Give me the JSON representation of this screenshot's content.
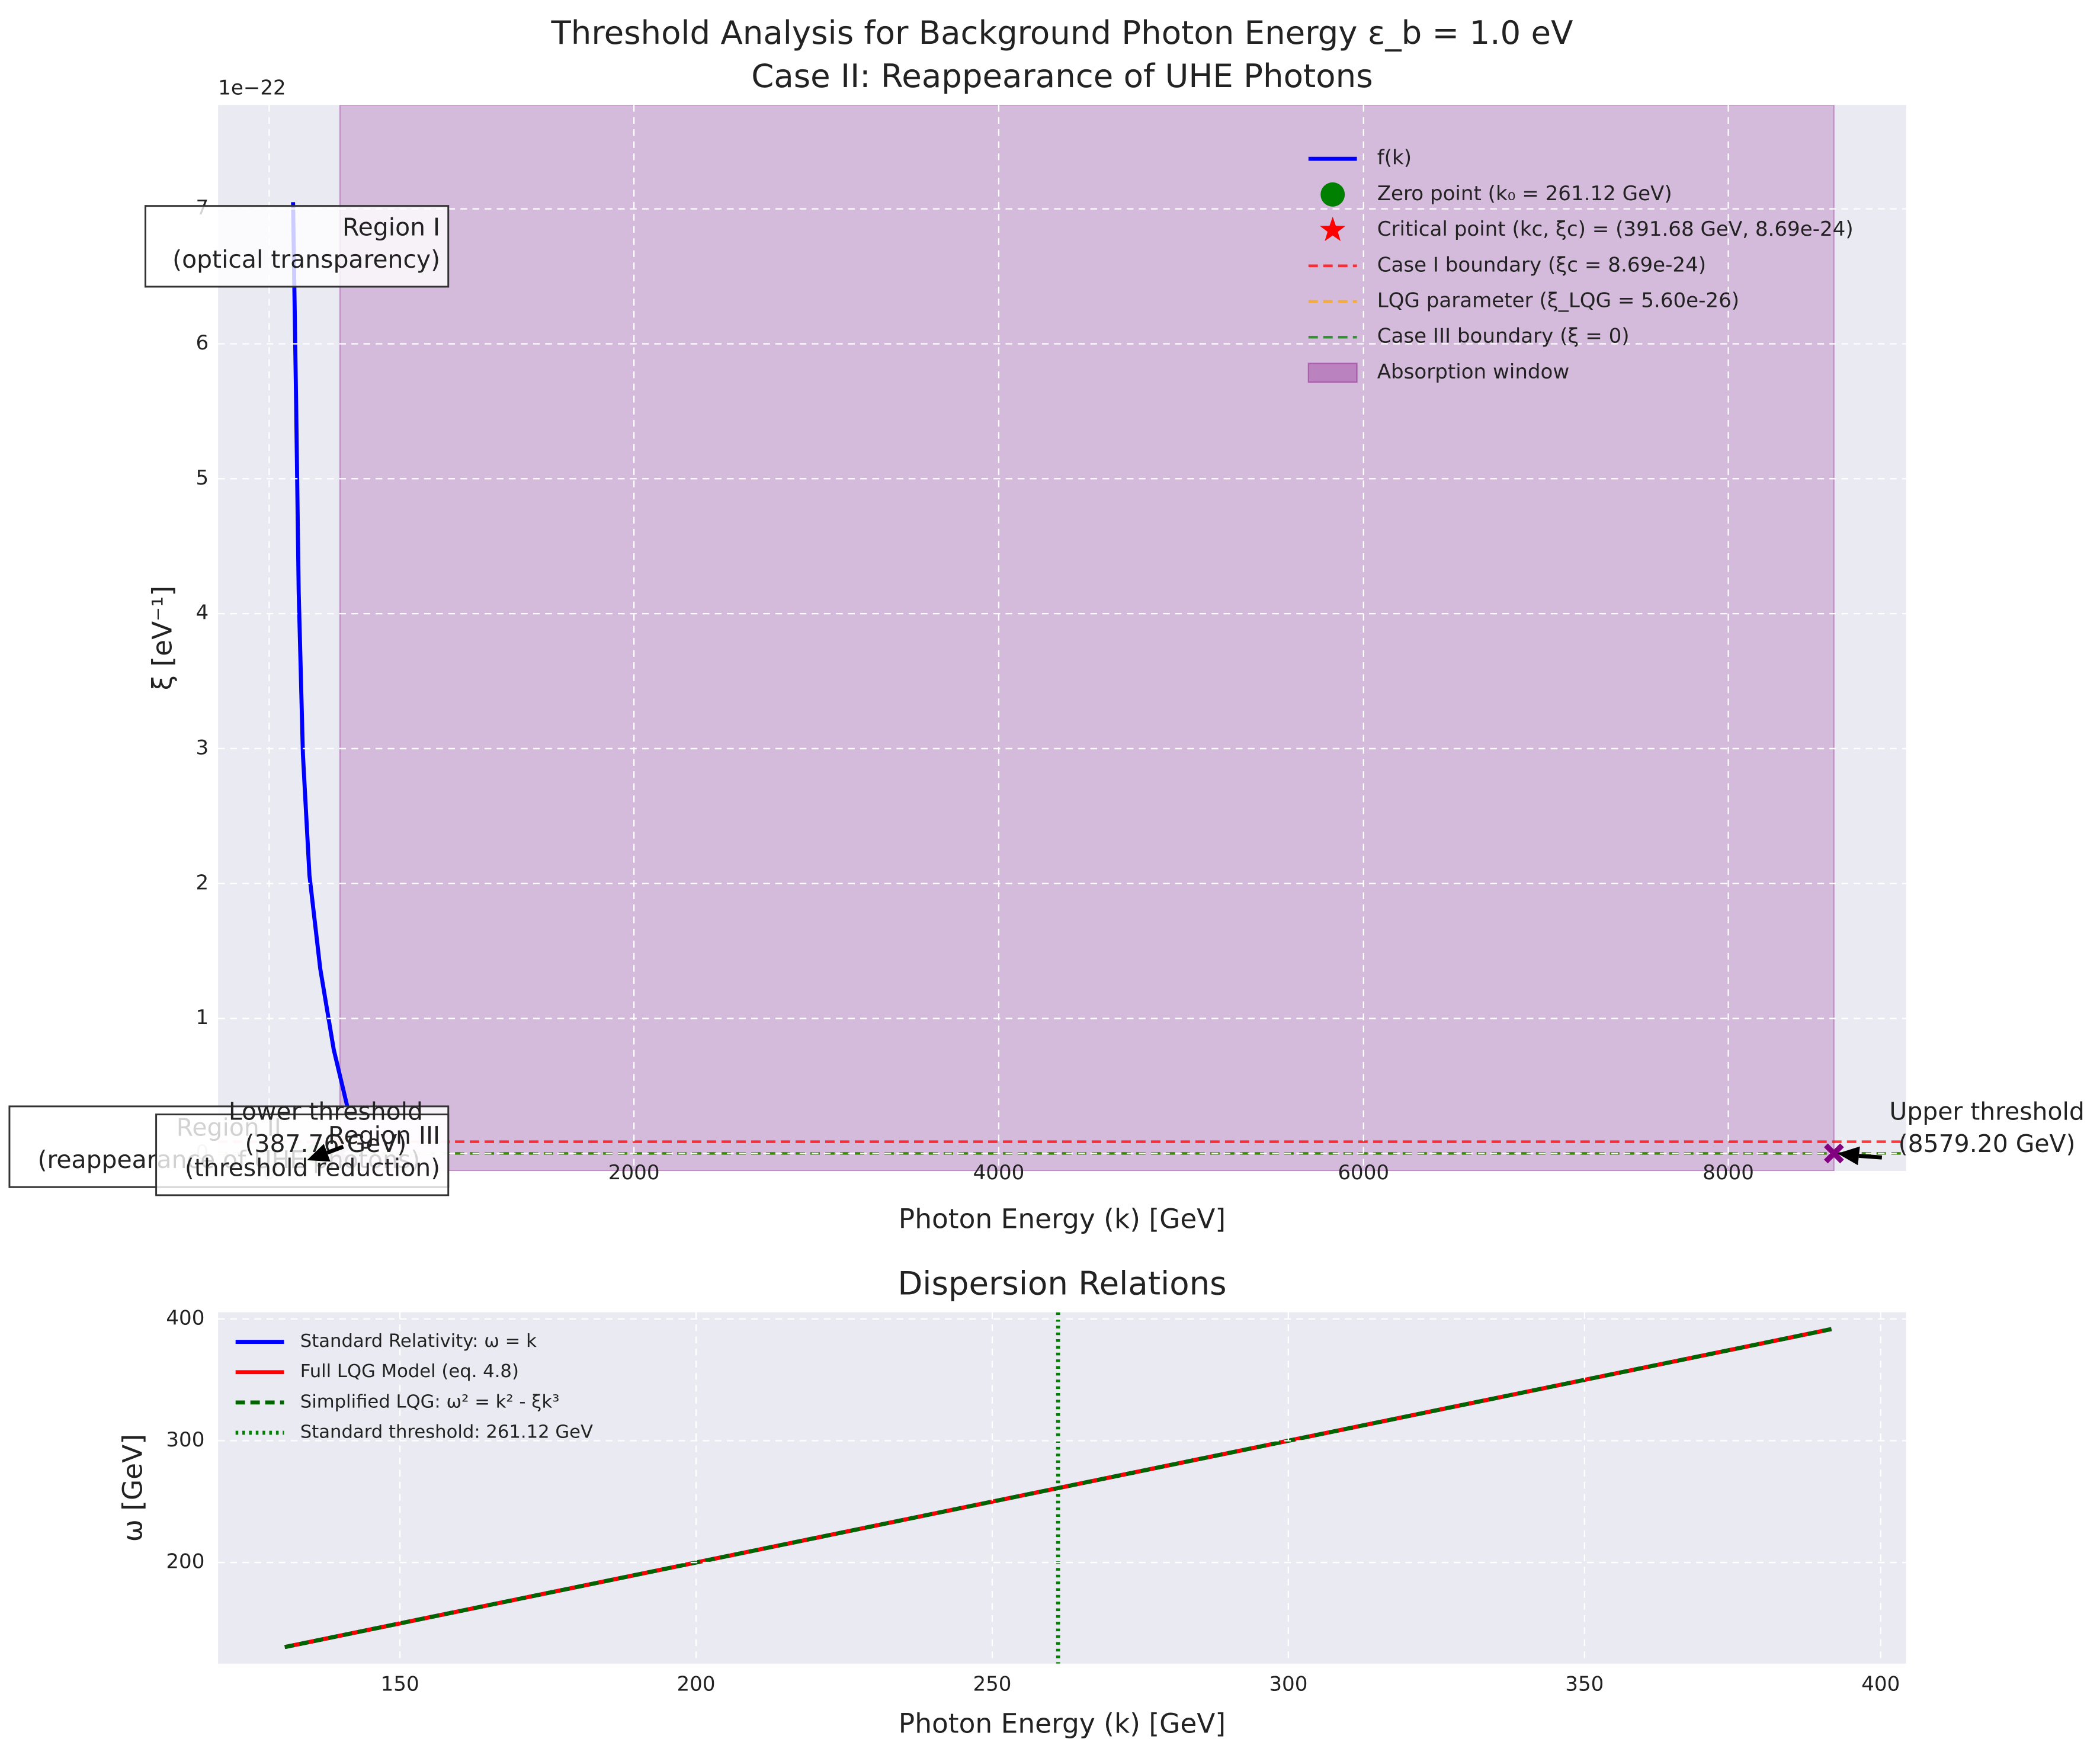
{
  "chart_data": [
    {
      "type": "line",
      "title_lines": [
        "Threshold Analysis for Background Photon Energy ε_b = 1.0 eV",
        "Case II: Reappearance of UHE Photons"
      ],
      "x_label": "Photon Energy (k) [GeV]",
      "y_label": "ξ [eV⁻¹]",
      "y_offset_label": "1e−22",
      "xlim": [
        -280,
        8975
      ],
      "ylim": [
        -0.13,
        7.77
      ],
      "xticks": [
        0,
        2000,
        4000,
        6000,
        8000
      ],
      "yticks": [
        0,
        1,
        2,
        3,
        4,
        5,
        6,
        7
      ],
      "grid": true,
      "legend": "upper right",
      "series": [
        {
          "name": "f(k)",
          "color": "#0000ff",
          "x": [
            131,
            148,
            162,
            185,
            221,
            280,
            354,
            428
          ],
          "values": [
            7.05,
            5.55,
            4.16,
            2.96,
            2.06,
            1.37,
            0.77,
            0.35
          ]
        }
      ],
      "points": [
        {
          "name": "Zero point (k₀ = 261.12 GeV)",
          "color": "#008000",
          "marker": "circle",
          "x": 261.12,
          "y": 0
        },
        {
          "name": "Critical point (kc, ξc) = (391.68 GeV, 8.69e-24)",
          "color": "#ff0000",
          "marker": "star",
          "x": 391.68,
          "y": 0.0869
        }
      ],
      "hlines": [
        {
          "name": "Case I boundary (ξc = 8.69e-24)",
          "color": "#ff0000",
          "value": 0.0869
        },
        {
          "name": "LQG parameter (ξ_LQG = 5.60e-26)",
          "color": "#ffa500",
          "value": 0.00056
        },
        {
          "name": "Case III boundary (ξ = 0)",
          "color": "#008000",
          "value": 0
        }
      ],
      "span": {
        "name": "Absorption window",
        "color": "#800080",
        "from": 387.76,
        "to": 8579.2
      },
      "thresholds": [
        {
          "lines": [
            "Lower threshold",
            "(387.76 GeV)"
          ],
          "color": "#800080",
          "x": 387.76,
          "y": 0
        },
        {
          "lines": [
            "Upper threshold",
            "(8579.20 GeV)"
          ],
          "color": "#800080",
          "x": 8579.2,
          "y": 0
        }
      ],
      "regions": [
        {
          "lines": [
            "Region I",
            "(optical transparency)"
          ]
        },
        {
          "lines": [
            "Region II",
            "(reappearance of UHE photons)"
          ]
        },
        {
          "lines": [
            "Region III",
            "(threshold reduction)"
          ]
        }
      ]
    },
    {
      "type": "line",
      "title": "Dispersion Relations",
      "x_label": "Photon Energy (k) [GeV]",
      "y_label": "ω [GeV]",
      "xlim": [
        119.3,
        404.3
      ],
      "ylim": [
        117,
        405.5
      ],
      "xticks": [
        150,
        200,
        250,
        300,
        350,
        400
      ],
      "yticks": [
        200,
        300,
        400
      ],
      "grid": true,
      "legend": "upper left",
      "x": [
        130.56,
        391.68
      ],
      "series": [
        {
          "name": "Standard Relativity: ω = k",
          "color": "#0000ff",
          "style": "solid",
          "values": [
            130.56,
            391.68
          ]
        },
        {
          "name": "Full LQG Model (eq. 4.8)",
          "color": "#ff0000",
          "style": "solid",
          "values": [
            130.56,
            391.68
          ]
        },
        {
          "name": "Simplified LQG: ω² = k² - ξk³",
          "color": "#006400",
          "style": "dashed",
          "values": [
            130.56,
            391.68
          ]
        }
      ],
      "vlines": [
        {
          "name": "Standard threshold: 261.12 GeV",
          "color": "#008000",
          "style": "dotted",
          "value": 261.12
        }
      ]
    }
  ]
}
